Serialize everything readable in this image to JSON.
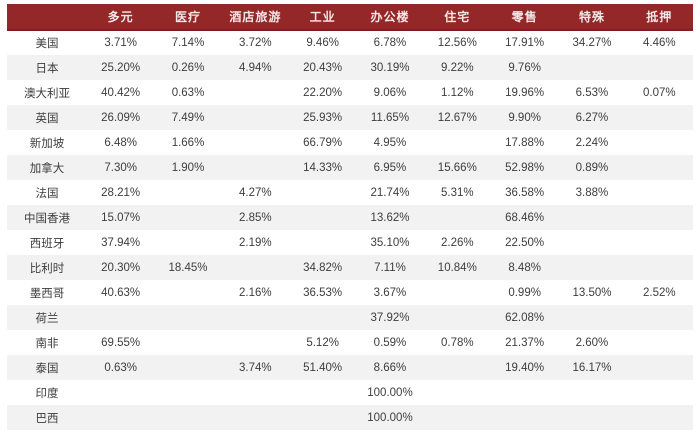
{
  "colors": {
    "header_bg": "#942828",
    "header_border": "#7c2022",
    "header_text": "#f2e7e7",
    "stripe": "#f2f2f2",
    "body_text": "#3d3d3d",
    "background": "#ffffff"
  },
  "chart_data": {
    "type": "table",
    "title": "",
    "columns": [
      "",
      "多元",
      "医疗",
      "酒店旅游",
      "工业",
      "办公楼",
      "住宅",
      "零售",
      "特殊",
      "抵押"
    ],
    "rows": [
      {
        "country": "美国",
        "values": [
          "3.71%",
          "7.14%",
          "3.72%",
          "9.46%",
          "6.78%",
          "12.56%",
          "17.91%",
          "34.27%",
          "4.46%"
        ]
      },
      {
        "country": "日本",
        "values": [
          "25.20%",
          "0.26%",
          "4.94%",
          "20.43%",
          "30.19%",
          "9.22%",
          "9.76%",
          "",
          ""
        ]
      },
      {
        "country": "澳大利亚",
        "values": [
          "40.42%",
          "0.63%",
          "",
          "22.20%",
          "9.06%",
          "1.12%",
          "19.96%",
          "6.53%",
          "0.07%"
        ]
      },
      {
        "country": "英国",
        "values": [
          "26.09%",
          "7.49%",
          "",
          "25.93%",
          "11.65%",
          "12.67%",
          "9.90%",
          "6.27%",
          ""
        ]
      },
      {
        "country": "新加坡",
        "values": [
          "6.48%",
          "1.66%",
          "",
          "66.79%",
          "4.95%",
          "",
          "17.88%",
          "2.24%",
          ""
        ]
      },
      {
        "country": "加拿大",
        "values": [
          "7.30%",
          "1.90%",
          "",
          "14.33%",
          "6.95%",
          "15.66%",
          "52.98%",
          "0.89%",
          ""
        ]
      },
      {
        "country": "法国",
        "values": [
          "28.21%",
          "",
          "4.27%",
          "",
          "21.74%",
          "5.31%",
          "36.58%",
          "3.88%",
          ""
        ]
      },
      {
        "country": "中国香港",
        "values": [
          "15.07%",
          "",
          "2.85%",
          "",
          "13.62%",
          "",
          "68.46%",
          "",
          ""
        ]
      },
      {
        "country": "西班牙",
        "values": [
          "37.94%",
          "",
          "2.19%",
          "",
          "35.10%",
          "2.26%",
          "22.50%",
          "",
          ""
        ]
      },
      {
        "country": "比利时",
        "values": [
          "20.30%",
          "18.45%",
          "",
          "34.82%",
          "7.11%",
          "10.84%",
          "8.48%",
          "",
          ""
        ]
      },
      {
        "country": "墨西哥",
        "values": [
          "40.63%",
          "",
          "2.16%",
          "36.53%",
          "3.67%",
          "",
          "0.99%",
          "13.50%",
          "2.52%"
        ]
      },
      {
        "country": "荷兰",
        "values": [
          "",
          "",
          "",
          "",
          "37.92%",
          "",
          "62.08%",
          "",
          ""
        ]
      },
      {
        "country": "南非",
        "values": [
          "69.55%",
          "",
          "",
          "5.12%",
          "0.59%",
          "0.78%",
          "21.37%",
          "2.60%",
          ""
        ]
      },
      {
        "country": "泰国",
        "values": [
          "0.63%",
          "",
          "3.74%",
          "51.40%",
          "8.66%",
          "",
          "19.40%",
          "16.17%",
          ""
        ]
      },
      {
        "country": "印度",
        "values": [
          "",
          "",
          "",
          "",
          "100.00%",
          "",
          "",
          "",
          ""
        ]
      },
      {
        "country": "巴西",
        "values": [
          "",
          "",
          "",
          "",
          "100.00%",
          "",
          "",
          "",
          ""
        ]
      }
    ]
  }
}
